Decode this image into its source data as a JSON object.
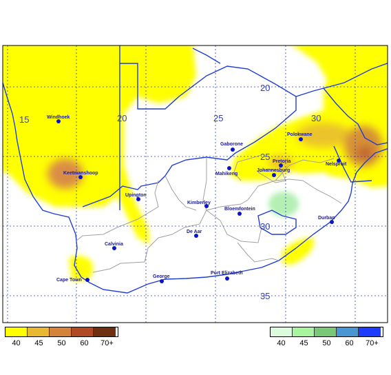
{
  "map": {
    "gridlines_longitude": [
      "15",
      "20",
      "25",
      "30"
    ],
    "gridlines_latitude": [
      "20",
      "25",
      "30",
      "35"
    ],
    "cities": [
      {
        "name": "Windhoek"
      },
      {
        "name": "Gaborone"
      },
      {
        "name": "Polokwane"
      },
      {
        "name": "Pretoria"
      },
      {
        "name": "Mahikeng"
      },
      {
        "name": "Johannesburg"
      },
      {
        "name": "Nelspruit"
      },
      {
        "name": "Keetmanshoop"
      },
      {
        "name": "Upington"
      },
      {
        "name": "Kimberley"
      },
      {
        "name": "Bloemfontein"
      },
      {
        "name": "Durban"
      },
      {
        "name": "De Aar"
      },
      {
        "name": "Calvinia"
      },
      {
        "name": "George"
      },
      {
        "name": "Port Elizabeth"
      },
      {
        "name": "Cape Town"
      }
    ]
  },
  "legend_left": {
    "colors": [
      "#ffff00",
      "#e8b832",
      "#d4843a",
      "#b04a24",
      "#6e3010"
    ],
    "labels": [
      "40",
      "45",
      "50",
      "60",
      "70+"
    ]
  },
  "legend_right": {
    "colors": [
      "#dcfadc",
      "#a8f5a0",
      "#78c878",
      "#4a96d2",
      "#1e3cff"
    ],
    "labels": [
      "40",
      "45",
      "50",
      "60",
      "70+"
    ]
  }
}
